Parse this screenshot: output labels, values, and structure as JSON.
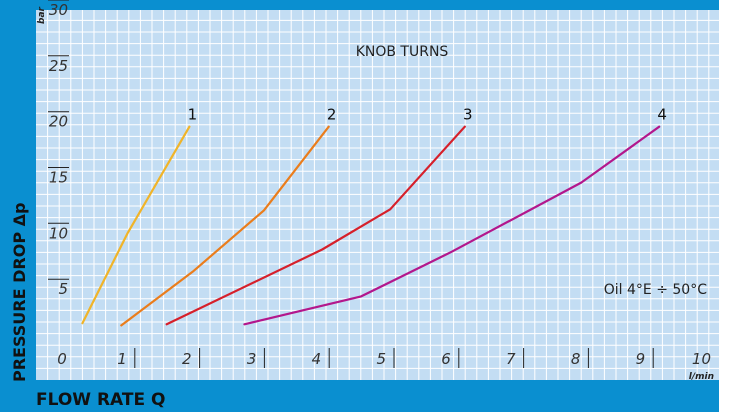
{
  "colors": {
    "frame": "#0a8fd0",
    "plot_background": "#c3ddf3",
    "grid": "#ffffff",
    "axis_tick_marks": "#222222"
  },
  "chart_data": {
    "type": "line",
    "title": "KNOB TURNS",
    "xlabel": "FLOW RATE Q",
    "ylabel": "PRESSURE DROP Δp",
    "x_unit": "l/min",
    "y_unit": "bar",
    "xlim": [
      0,
      10
    ],
    "ylim": [
      0,
      30
    ],
    "x_ticks": [
      "0",
      "1",
      "2",
      "3",
      "4",
      "5",
      "6",
      "7",
      "8",
      "9",
      "10"
    ],
    "y_ticks": [
      "5",
      "10",
      "15",
      "20",
      "25",
      "30"
    ],
    "grid": true,
    "annotation": "Oil 4°E ÷ 50°C",
    "series": [
      {
        "name": "1",
        "color": "#f0b429",
        "points": [
          [
            0.3,
            2.4
          ],
          [
            1.0,
            10.5
          ],
          [
            1.95,
            20.0
          ]
        ]
      },
      {
        "name": "2",
        "color": "#ea7d1c",
        "points": [
          [
            0.9,
            2.2
          ],
          [
            2.0,
            7.0
          ],
          [
            3.1,
            12.5
          ],
          [
            4.1,
            20.0
          ]
        ]
      },
      {
        "name": "3",
        "color": "#d6202b",
        "points": [
          [
            1.6,
            2.3
          ],
          [
            4.0,
            9.0
          ],
          [
            5.05,
            12.6
          ],
          [
            6.2,
            20.0
          ]
        ]
      },
      {
        "name": "4",
        "color": "#b3178c",
        "points": [
          [
            2.8,
            2.3
          ],
          [
            4.6,
            4.8
          ],
          [
            6.0,
            8.8
          ],
          [
            8.0,
            15.0
          ],
          [
            9.2,
            20.0
          ]
        ]
      }
    ]
  }
}
